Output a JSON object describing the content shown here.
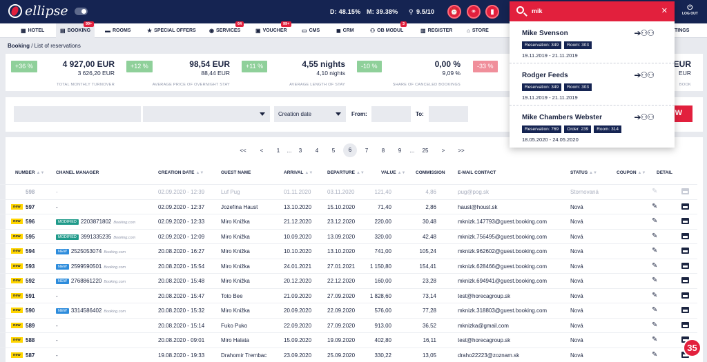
{
  "header": {
    "app_name": "ellipse",
    "stats": {
      "d": "D: 48.15%",
      "m": "M: 39.38%",
      "rating": "9.5/10"
    },
    "logout": "LOG OUT"
  },
  "nav": {
    "items": [
      {
        "label": "HOTEL",
        "icon": "building-icon"
      },
      {
        "label": "BOOKING",
        "icon": "calendar-icon",
        "badge": "99+"
      },
      {
        "label": "ROOMS",
        "icon": "bed-icon"
      },
      {
        "label": "SPECIAL OFFERS",
        "icon": "star-icon"
      },
      {
        "label": "SERVICES",
        "icon": "bell-icon",
        "badge": "64"
      },
      {
        "label": "VOUCHER",
        "icon": "gift-icon",
        "badge": "99+"
      },
      {
        "label": "CMS",
        "icon": "monitor-icon"
      },
      {
        "label": "CRM",
        "icon": "briefcase-icon"
      },
      {
        "label": "OB MODUL",
        "icon": "users-icon",
        "badge": "3"
      },
      {
        "label": "REGISTER",
        "icon": "clipboard-icon"
      },
      {
        "label": "STORE",
        "icon": "shop-icon"
      },
      {
        "label": "TINGS",
        "icon": "settings-icon"
      }
    ]
  },
  "breadcrumb": {
    "section": "Booking",
    "page": "List of reservations"
  },
  "kpis": [
    {
      "pct": "+36 %",
      "big": "4 927,00 EUR",
      "small": "3 626,20 EUR",
      "caption": "TOTAL MONTHLY TURNOVER",
      "color": "#8fd09a"
    },
    {
      "pct": "+12 %",
      "big": "98,54 EUR",
      "small": "88,44 EUR",
      "caption": "AVERAGE PRICE OF OVERNIGHT STAY",
      "color": "#8fd09a"
    },
    {
      "pct": "+11 %",
      "big": "4,55 nights",
      "small": "4,10 nights",
      "caption": "AVERAGE LENGTH OF STAY",
      "color": "#8fd09a"
    },
    {
      "pct": "-10 %",
      "big": "0,00 %",
      "small": "9,09 %",
      "caption": "SHARE OF CANCELED BOOKINGS",
      "color": "#8fd09a"
    },
    {
      "pct": "-33 %",
      "big": "EUR",
      "small": "EUR",
      "caption": "BOOK",
      "color": "#f08f9b"
    }
  ],
  "filters": {
    "date_type": "Creation date",
    "from_label": "From:",
    "to_label": "To:",
    "view_button": "W"
  },
  "pagination": [
    "<<",
    "<",
    "1",
    "...",
    "3",
    "4",
    "5",
    "6",
    "7",
    "8",
    "9",
    "...",
    "25",
    ">",
    ">>"
  ],
  "pagination_current": "6",
  "table": {
    "headers": [
      "NUMBER",
      "CHANEL MANAGER",
      "CREATION DATE",
      "GUEST NAME",
      "ARRIVAL",
      "DEPARTURE",
      "VALUE",
      "COMMISSION",
      "E-MAIL CONTACT",
      "STATUS",
      "COUPON",
      "DETAIL"
    ],
    "rows": [
      {
        "number": "598",
        "cm": "-",
        "cm_tag": "",
        "cm_src": "",
        "created": "02.09.2020 - 12:39",
        "guest": "Luf Pug",
        "arrival": "01.11.2020",
        "departure": "03.11.2020",
        "value": "121,40",
        "commission": "4,86",
        "email": "pug@pog.sk",
        "status": "Stornovaná",
        "cancelled": true,
        "is_new": false
      },
      {
        "number": "597",
        "cm": "-",
        "cm_tag": "",
        "cm_src": "",
        "created": "02.09.2020 - 12:37",
        "guest": "Jozefína Haust",
        "arrival": "13.10.2020",
        "departure": "15.10.2020",
        "value": "71,40",
        "commission": "2,86",
        "email": "haust@houst.sk",
        "status": "Nová",
        "cancelled": false,
        "is_new": true
      },
      {
        "number": "596",
        "cm": "2203871802",
        "cm_tag": "MODIFIED",
        "cm_src": "Booking.com",
        "created": "02.09.2020 - 12:33",
        "guest": "Miro Knižka",
        "arrival": "21.12.2020",
        "departure": "23.12.2020",
        "value": "220,00",
        "commission": "30,48",
        "email": "mknizk.147793@guest.booking.com",
        "status": "Nová",
        "cancelled": false,
        "is_new": true
      },
      {
        "number": "595",
        "cm": "3991335235",
        "cm_tag": "MODIFIED",
        "cm_src": "Booking.com",
        "created": "02.09.2020 - 12:09",
        "guest": "Miro Knižka",
        "arrival": "10.09.2020",
        "departure": "13.09.2020",
        "value": "320,00",
        "commission": "42,48",
        "email": "mknizk.756495@guest.booking.com",
        "status": "Nová",
        "cancelled": false,
        "is_new": true
      },
      {
        "number": "594",
        "cm": "2525053074",
        "cm_tag": "NEW",
        "cm_src": "Booking.com",
        "created": "20.08.2020 - 16:27",
        "guest": "Miro Knižka",
        "arrival": "10.10.2020",
        "departure": "13.10.2020",
        "value": "741,00",
        "commission": "105,24",
        "email": "mknizk.962602@guest.booking.com",
        "status": "Nová",
        "cancelled": false,
        "is_new": true
      },
      {
        "number": "593",
        "cm": "2599590501",
        "cm_tag": "NEW",
        "cm_src": "Booking.com",
        "created": "20.08.2020 - 15:54",
        "guest": "Miro Knižka",
        "arrival": "24.01.2021",
        "departure": "27.01.2021",
        "value": "1 150,80",
        "commission": "154,41",
        "email": "mknizk.628466@guest.booking.com",
        "status": "Nová",
        "cancelled": false,
        "is_new": true
      },
      {
        "number": "592",
        "cm": "2768861220",
        "cm_tag": "NEW",
        "cm_src": "Booking.com",
        "created": "20.08.2020 - 15:48",
        "guest": "Miro Knižka",
        "arrival": "20.12.2020",
        "departure": "22.12.2020",
        "value": "160,00",
        "commission": "23,28",
        "email": "mknizk.694941@guest.booking.com",
        "status": "Nová",
        "cancelled": false,
        "is_new": true
      },
      {
        "number": "591",
        "cm": "-",
        "cm_tag": "",
        "cm_src": "",
        "created": "20.08.2020 - 15:47",
        "guest": "Toto Bee",
        "arrival": "21.09.2020",
        "departure": "27.09.2020",
        "value": "1 828,60",
        "commission": "73,14",
        "email": "test@horecagroup.sk",
        "status": "Nová",
        "cancelled": false,
        "is_new": true
      },
      {
        "number": "590",
        "cm": "3314586402",
        "cm_tag": "NEW",
        "cm_src": "Booking.com",
        "created": "20.08.2020 - 15:32",
        "guest": "Miro Knižka",
        "arrival": "20.09.2020",
        "departure": "22.09.2020",
        "value": "576,00",
        "commission": "77,28",
        "email": "mknizk.318803@guest.booking.com",
        "status": "Nová",
        "cancelled": false,
        "is_new": true
      },
      {
        "number": "589",
        "cm": "-",
        "cm_tag": "",
        "cm_src": "",
        "created": "20.08.2020 - 15:14",
        "guest": "Fuko Puko",
        "arrival": "22.09.2020",
        "departure": "27.09.2020",
        "value": "913,00",
        "commission": "36,52",
        "email": "mknizka@gmail.com",
        "status": "Nová",
        "cancelled": false,
        "is_new": true
      },
      {
        "number": "588",
        "cm": "-",
        "cm_tag": "",
        "cm_src": "",
        "created": "20.08.2020 - 09:01",
        "guest": "Miro Halata",
        "arrival": "15.09.2020",
        "departure": "19.09.2020",
        "value": "402,80",
        "commission": "16,11",
        "email": "test@horecagroup.sk",
        "status": "Nová",
        "cancelled": false,
        "is_new": true
      },
      {
        "number": "587",
        "cm": "-",
        "cm_tag": "",
        "cm_src": "",
        "created": "19.08.2020 - 19:33",
        "guest": "Drahomir Trembac",
        "arrival": "23.09.2020",
        "departure": "25.09.2020",
        "value": "330,22",
        "commission": "13,05",
        "email": "draho22223@zoznam.sk",
        "status": "Nová",
        "cancelled": false,
        "is_new": true
      }
    ]
  },
  "search": {
    "query": "mik",
    "results": [
      {
        "name": "Mike Svenson",
        "chips": [
          "Reservation: 349",
          "Room: 303"
        ],
        "dates": "19.11.2019 - 21.11.2019"
      },
      {
        "name": "Rodger Feeds",
        "chips": [
          "Reservation: 349",
          "Room: 303"
        ],
        "dates": "19.11.2019 - 21.11.2019"
      },
      {
        "name": "Mike Chambers Webster",
        "chips": [
          "Reservation: 769",
          "Order: 239",
          "Room: 314"
        ],
        "dates": "18.05.2020 - 24.05.2020"
      }
    ]
  },
  "chat_badge": "35"
}
